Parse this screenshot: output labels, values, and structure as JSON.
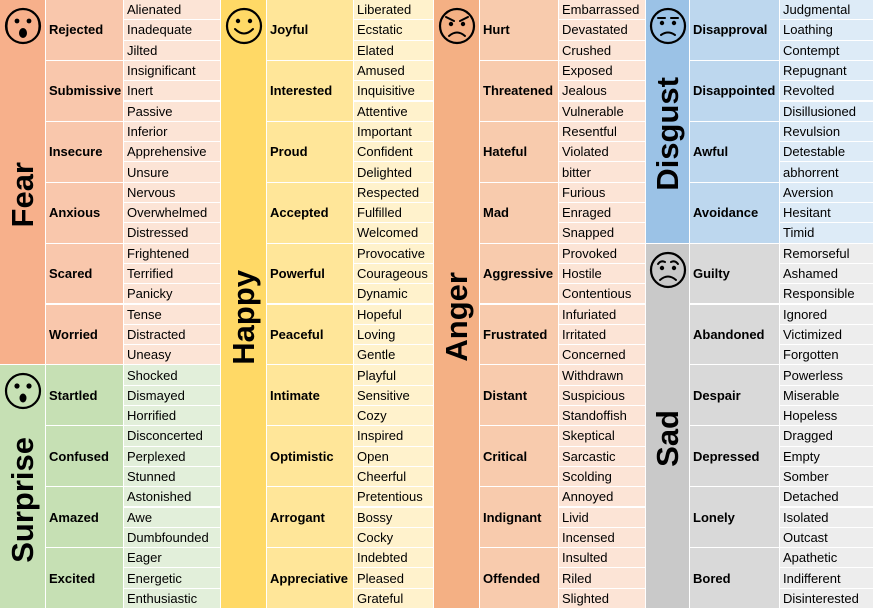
{
  "colors": {
    "fear": {
      "main": "#f7b08b",
      "mid": "#f9c7ac",
      "leaf": "#fce4d6"
    },
    "surprise": {
      "main": "#c6e0b4",
      "mid": "#c6e0b4",
      "leaf": "#e2efda"
    },
    "happy": {
      "main": "#ffd966",
      "mid": "#ffe699",
      "leaf": "#fff2cc"
    },
    "anger": {
      "main": "#f4b084",
      "mid": "#f8cbad",
      "leaf": "#fce4d6"
    },
    "disgust": {
      "main": "#9bc2e6",
      "mid": "#bdd7ee",
      "leaf": "#ddebf7"
    },
    "sad": {
      "main": "#c9c9c9",
      "mid": "#d9d9d9",
      "leaf": "#ededed"
    }
  },
  "columns": [
    {
      "groups": [
        {
          "key": "fear",
          "title": "Fear",
          "icon": "fearful-face-icon",
          "rows": 6,
          "emotions": [
            {
              "name": "Rejected",
              "words": [
                "Alienated",
                "Inadequate",
                "Jilted"
              ]
            },
            {
              "name": "Submissive",
              "words": [
                "Insignificant",
                "Inert",
                "Passive"
              ]
            },
            {
              "name": "Insecure",
              "words": [
                "Inferior",
                "Apprehensive",
                "Unsure"
              ]
            },
            {
              "name": "Anxious",
              "words": [
                "Nervous",
                "Overwhelmed",
                "Distressed"
              ]
            },
            {
              "name": "Scared",
              "words": [
                "Frightened",
                "Terrified",
                "Panicky"
              ]
            },
            {
              "name": "Worried",
              "words": [
                "Tense",
                "Distracted",
                "Uneasy"
              ]
            }
          ]
        },
        {
          "key": "surprise",
          "title": "Surprise",
          "icon": "surprised-face-icon",
          "rows": 4,
          "emotions": [
            {
              "name": "Startled",
              "words": [
                "Shocked",
                "Dismayed",
                "Horrified"
              ]
            },
            {
              "name": "Confused",
              "words": [
                "Disconcerted",
                "Perplexed",
                "Stunned"
              ]
            },
            {
              "name": "Amazed",
              "words": [
                "Astonished",
                "Awe",
                "Dumbfounded"
              ]
            },
            {
              "name": "Excited",
              "words": [
                "Eager",
                "Energetic",
                "Enthusiastic"
              ]
            }
          ]
        }
      ]
    },
    {
      "groups": [
        {
          "key": "happy",
          "title": "Happy",
          "icon": "smiling-face-icon",
          "rows": 10,
          "emotions": [
            {
              "name": "Joyful",
              "words": [
                "Liberated",
                "Ecstatic",
                "Elated"
              ]
            },
            {
              "name": "Interested",
              "words": [
                "Amused",
                "Inquisitive",
                "Attentive"
              ]
            },
            {
              "name": "Proud",
              "words": [
                "Important",
                "Confident",
                "Delighted"
              ]
            },
            {
              "name": "Accepted",
              "words": [
                "Respected",
                "Fulfilled",
                "Welcomed"
              ]
            },
            {
              "name": "Powerful",
              "words": [
                "Provocative",
                "Courageous",
                "Dynamic"
              ]
            },
            {
              "name": "Peaceful",
              "words": [
                "Hopeful",
                "Loving",
                "Gentle"
              ]
            },
            {
              "name": "Intimate",
              "words": [
                "Playful",
                "Sensitive",
                "Cozy"
              ]
            },
            {
              "name": "Optimistic",
              "words": [
                "Inspired",
                "Open",
                "Cheerful"
              ]
            },
            {
              "name": "Arrogant",
              "words": [
                "Pretentious",
                "Bossy",
                "Cocky"
              ]
            },
            {
              "name": "Appreciative",
              "words": [
                "Indebted",
                "Pleased",
                "Grateful"
              ]
            }
          ]
        }
      ]
    },
    {
      "groups": [
        {
          "key": "anger",
          "title": "Anger",
          "icon": "angry-face-icon",
          "rows": 10,
          "emotions": [
            {
              "name": "Hurt",
              "words": [
                "Embarrassed",
                "Devastated",
                "Crushed"
              ]
            },
            {
              "name": "Threatened",
              "words": [
                "Exposed",
                "Jealous",
                "Vulnerable"
              ]
            },
            {
              "name": "Hateful",
              "words": [
                "Resentful",
                "Violated",
                "bitter"
              ]
            },
            {
              "name": "Mad",
              "words": [
                "Furious",
                "Enraged",
                "Snapped"
              ]
            },
            {
              "name": "Aggressive",
              "words": [
                "Provoked",
                "Hostile",
                "Contentious"
              ]
            },
            {
              "name": "Frustrated",
              "words": [
                "Infuriated",
                "Irritated",
                "Concerned"
              ]
            },
            {
              "name": "Distant",
              "words": [
                "Withdrawn",
                "Suspicious",
                "Standoffish"
              ]
            },
            {
              "name": "Critical",
              "words": [
                "Skeptical",
                "Sarcastic",
                "Scolding"
              ]
            },
            {
              "name": "Indignant",
              "words": [
                "Annoyed",
                "Livid",
                "Incensed"
              ]
            },
            {
              "name": "Offended",
              "words": [
                "Insulted",
                "Riled",
                "Slighted"
              ]
            }
          ]
        }
      ]
    },
    {
      "groups": [
        {
          "key": "disgust",
          "title": "Disgust",
          "icon": "frowning-face-icon",
          "rows": 4,
          "emotions": [
            {
              "name": "Disapproval",
              "words": [
                "Judgmental",
                "Loathing",
                "Contempt"
              ]
            },
            {
              "name": "Disappointed",
              "words": [
                "Repugnant",
                "Revolted",
                "Disillusioned"
              ]
            },
            {
              "name": "Awful",
              "words": [
                "Revulsion",
                "Detestable",
                "abhorrent"
              ]
            },
            {
              "name": "Avoidance",
              "words": [
                "Aversion",
                "Hesitant",
                "Timid"
              ]
            }
          ]
        },
        {
          "key": "sad",
          "title": "Sad",
          "icon": "sad-face-icon",
          "rows": 6,
          "emotions": [
            {
              "name": "Guilty",
              "words": [
                "Remorseful",
                "Ashamed",
                "Responsible"
              ]
            },
            {
              "name": "Abandoned",
              "words": [
                "Ignored",
                "Victimized",
                "Forgotten"
              ]
            },
            {
              "name": "Despair",
              "words": [
                "Powerless",
                "Miserable",
                "Hopeless"
              ]
            },
            {
              "name": "Depressed",
              "words": [
                "Dragged",
                "Empty",
                "Somber"
              ]
            },
            {
              "name": "Lonely",
              "words": [
                "Detached",
                "Isolated",
                "Outcast"
              ]
            },
            {
              "name": "Bored",
              "words": [
                "Apathetic",
                "Indifferent",
                "Disinterested"
              ]
            }
          ]
        }
      ]
    }
  ]
}
